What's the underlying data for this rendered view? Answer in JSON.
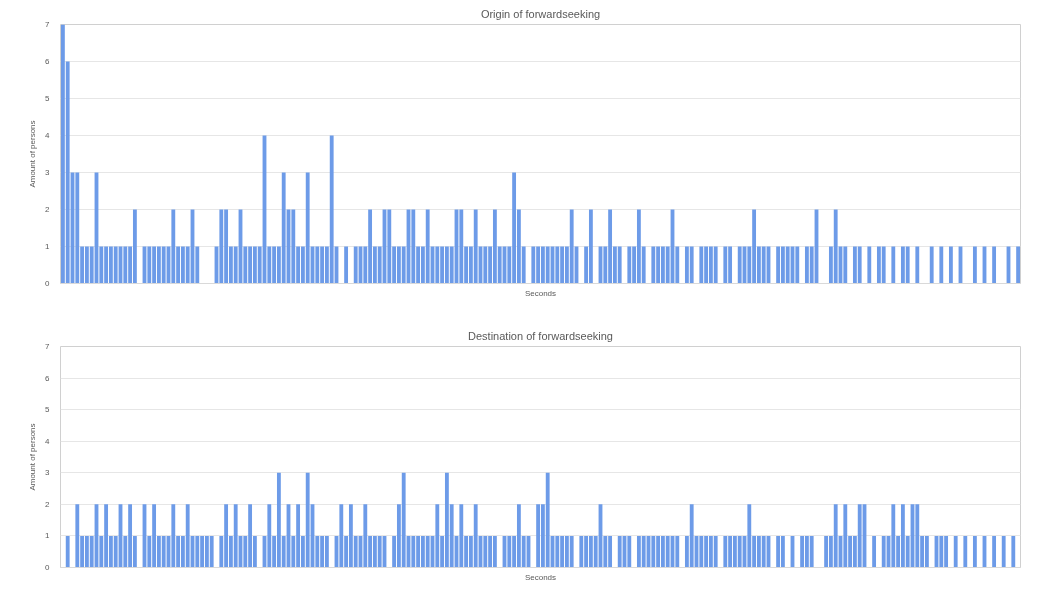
{
  "chart_data": [
    {
      "type": "bar",
      "title": "Origin of forwardseeking",
      "xlabel": "Seconds",
      "ylabel": "Amount of persons",
      "color": "#6d9be8",
      "ylim": [
        0,
        7
      ],
      "yticks": [
        0,
        1,
        2,
        3,
        4,
        5,
        6,
        7
      ],
      "grid": "y",
      "tick_labels": "y",
      "categories": [
        null,
        null,
        null,
        null,
        null,
        null,
        null,
        null,
        null,
        null,
        null,
        null,
        null,
        null,
        null,
        null,
        null,
        null,
        null,
        null,
        null,
        null,
        null,
        null,
        null,
        null,
        null,
        null,
        null,
        null,
        null,
        null,
        null,
        null,
        null,
        null,
        null,
        null,
        null,
        null,
        null,
        null,
        null,
        null,
        null,
        null,
        null,
        null,
        null,
        null,
        null,
        null,
        null,
        null,
        null,
        null,
        null,
        null,
        null,
        null,
        null,
        null,
        null,
        null,
        null,
        null,
        null,
        null,
        null,
        null,
        null,
        null,
        null,
        null,
        null,
        null,
        null,
        null,
        null,
        null,
        null,
        null,
        null,
        null,
        null,
        null,
        null,
        null,
        null,
        null,
        null,
        null,
        null,
        null,
        null,
        null,
        null,
        null,
        null,
        null,
        null,
        null,
        null,
        null,
        null,
        null,
        null,
        null,
        null,
        null,
        null,
        null,
        null,
        null,
        null,
        null,
        null,
        null,
        null,
        null,
        null,
        null,
        null,
        null,
        null,
        null,
        null,
        null,
        null,
        null,
        null,
        null,
        null,
        null,
        null,
        null,
        null,
        null,
        null,
        null,
        null,
        null,
        null,
        null,
        null,
        null,
        null,
        null,
        null,
        null,
        null,
        null,
        null,
        null,
        null,
        null,
        null,
        null,
        null,
        null,
        null,
        null,
        null,
        null,
        null,
        null,
        null,
        null,
        null,
        null,
        null,
        null,
        null,
        null,
        null,
        null,
        null,
        null,
        null,
        null,
        null,
        null,
        null,
        null,
        null,
        null,
        null,
        null,
        null,
        null,
        null,
        null,
        null,
        null,
        null,
        null,
        null,
        null,
        null,
        null
      ],
      "values": [
        7,
        6,
        3,
        3,
        1,
        1,
        1,
        3,
        1,
        1,
        1,
        1,
        1,
        1,
        1,
        2,
        0,
        1,
        1,
        1,
        1,
        1,
        1,
        2,
        1,
        1,
        1,
        2,
        1,
        0,
        0,
        0,
        1,
        2,
        2,
        1,
        1,
        2,
        1,
        1,
        1,
        1,
        4,
        1,
        1,
        1,
        3,
        2,
        2,
        1,
        1,
        3,
        1,
        1,
        1,
        1,
        4,
        1,
        0,
        1,
        0,
        1,
        1,
        1,
        2,
        1,
        1,
        2,
        2,
        1,
        1,
        1,
        2,
        2,
        1,
        1,
        2,
        1,
        1,
        1,
        1,
        1,
        2,
        2,
        1,
        1,
        2,
        1,
        1,
        1,
        2,
        1,
        1,
        1,
        3,
        2,
        1,
        0,
        1,
        1,
        1,
        1,
        1,
        1,
        1,
        1,
        2,
        1,
        0,
        1,
        2,
        0,
        1,
        1,
        2,
        1,
        1,
        0,
        1,
        1,
        2,
        1,
        0,
        1,
        1,
        1,
        1,
        2,
        1,
        0,
        1,
        1,
        0,
        1,
        1,
        1,
        1,
        0,
        1,
        1,
        0,
        1,
        1,
        1,
        2,
        1,
        1,
        1,
        0,
        1,
        1,
        1,
        1,
        1,
        0,
        1,
        1,
        2,
        0,
        0,
        1,
        2,
        1,
        1,
        0,
        1,
        1,
        0,
        1,
        0,
        1,
        1,
        0,
        1,
        0,
        1,
        1,
        0,
        1,
        0,
        0,
        1,
        0,
        1,
        0,
        1,
        0,
        1,
        0,
        0,
        1,
        0,
        1,
        0,
        1,
        0,
        0,
        1,
        0,
        1
      ]
    },
    {
      "type": "bar",
      "title": "Destination of forwardseeking",
      "xlabel": "Seconds",
      "ylabel": "Amount of persons",
      "color": "#6d9be8",
      "ylim": [
        0,
        7
      ],
      "yticks": [
        0,
        1,
        2,
        3,
        4,
        5,
        6,
        7
      ],
      "grid": "y",
      "tick_labels": "y",
      "categories": [
        null,
        null,
        null,
        null,
        null,
        null,
        null,
        null,
        null,
        null,
        null,
        null,
        null,
        null,
        null,
        null,
        null,
        null,
        null,
        null,
        null,
        null,
        null,
        null,
        null,
        null,
        null,
        null,
        null,
        null,
        null,
        null,
        null,
        null,
        null,
        null,
        null,
        null,
        null,
        null,
        null,
        null,
        null,
        null,
        null,
        null,
        null,
        null,
        null,
        null,
        null,
        null,
        null,
        null,
        null,
        null,
        null,
        null,
        null,
        null,
        null,
        null,
        null,
        null,
        null,
        null,
        null,
        null,
        null,
        null,
        null,
        null,
        null,
        null,
        null,
        null,
        null,
        null,
        null,
        null,
        null,
        null,
        null,
        null,
        null,
        null,
        null,
        null,
        null,
        null,
        null,
        null,
        null,
        null,
        null,
        null,
        null,
        null,
        null,
        null,
        null,
        null,
        null,
        null,
        null,
        null,
        null,
        null,
        null,
        null,
        null,
        null,
        null,
        null,
        null,
        null,
        null,
        null,
        null,
        null,
        null,
        null,
        null,
        null,
        null,
        null,
        null,
        null,
        null,
        null,
        null,
        null,
        null,
        null,
        null,
        null,
        null,
        null,
        null,
        null,
        null,
        null,
        null,
        null,
        null,
        null,
        null,
        null,
        null,
        null,
        null,
        null,
        null,
        null,
        null,
        null,
        null,
        null,
        null,
        null,
        null,
        null,
        null,
        null,
        null,
        null,
        null,
        null,
        null,
        null,
        null,
        null,
        null,
        null,
        null,
        null,
        null,
        null,
        null,
        null,
        null,
        null,
        null,
        null,
        null,
        null,
        null,
        null,
        null,
        null,
        null,
        null,
        null,
        null,
        null,
        null,
        null,
        null,
        null,
        null
      ],
      "values": [
        0,
        1,
        0,
        2,
        1,
        1,
        1,
        2,
        1,
        2,
        1,
        1,
        2,
        1,
        2,
        1,
        0,
        2,
        1,
        2,
        1,
        1,
        1,
        2,
        1,
        1,
        2,
        1,
        1,
        1,
        1,
        1,
        0,
        1,
        2,
        1,
        2,
        1,
        1,
        2,
        1,
        0,
        1,
        2,
        1,
        3,
        1,
        2,
        1,
        2,
        1,
        3,
        2,
        1,
        1,
        1,
        0,
        1,
        2,
        1,
        2,
        1,
        1,
        2,
        1,
        1,
        1,
        1,
        0,
        1,
        2,
        3,
        1,
        1,
        1,
        1,
        1,
        1,
        2,
        1,
        3,
        2,
        1,
        2,
        1,
        1,
        2,
        1,
        1,
        1,
        1,
        0,
        1,
        1,
        1,
        2,
        1,
        1,
        0,
        2,
        2,
        3,
        1,
        1,
        1,
        1,
        1,
        0,
        1,
        1,
        1,
        1,
        2,
        1,
        1,
        0,
        1,
        1,
        1,
        0,
        1,
        1,
        1,
        1,
        1,
        1,
        1,
        1,
        1,
        0,
        1,
        2,
        1,
        1,
        1,
        1,
        1,
        0,
        1,
        1,
        1,
        1,
        1,
        2,
        1,
        1,
        1,
        1,
        0,
        1,
        1,
        0,
        1,
        0,
        1,
        1,
        1,
        0,
        0,
        1,
        1,
        2,
        1,
        2,
        1,
        1,
        2,
        2,
        0,
        1,
        0,
        1,
        1,
        2,
        1,
        2,
        1,
        2,
        2,
        1,
        1,
        0,
        1,
        1,
        1,
        0,
        1,
        0,
        1,
        0,
        1,
        0,
        1,
        0,
        1,
        0,
        1,
        0,
        1,
        0
      ]
    }
  ]
}
